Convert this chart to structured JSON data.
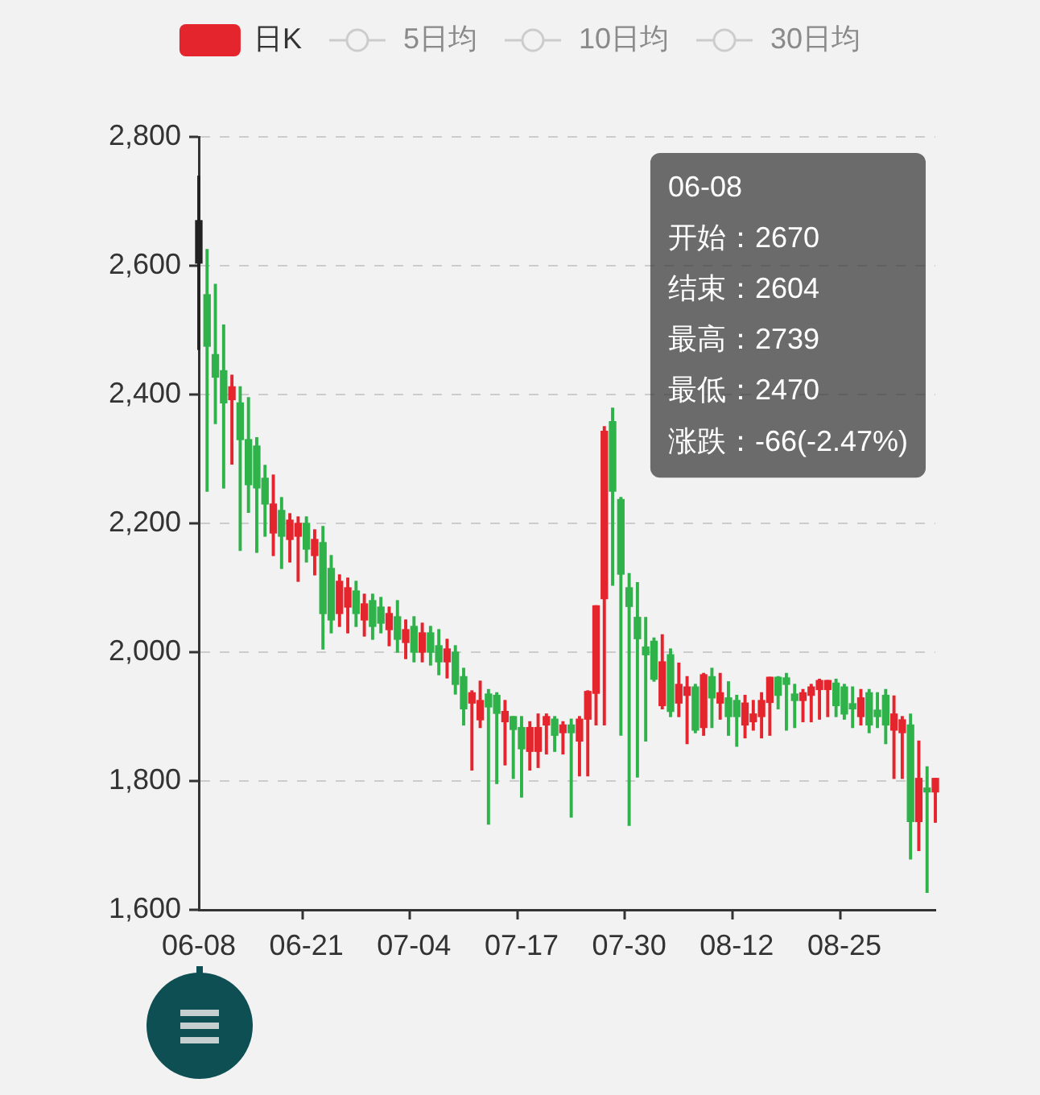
{
  "chart_data": {
    "type": "candlestick",
    "categories": [
      "06-08",
      null,
      null,
      null,
      null,
      null,
      null,
      null,
      null,
      null,
      null,
      null,
      null,
      "06-21",
      null,
      null,
      null,
      null,
      null,
      null,
      null,
      null,
      null,
      null,
      null,
      null,
      "07-04",
      null,
      null,
      null,
      null,
      null,
      null,
      null,
      null,
      null,
      null,
      null,
      null,
      "07-17",
      null,
      null,
      null,
      null,
      null,
      null,
      null,
      null,
      null,
      null,
      null,
      null,
      "07-30",
      null,
      null,
      null,
      null,
      null,
      null,
      null,
      null,
      null,
      null,
      null,
      null,
      "08-12",
      null,
      null,
      null,
      null,
      null,
      null,
      null,
      null,
      null,
      null,
      null,
      null,
      "08-25",
      null,
      null,
      null,
      null,
      null,
      null,
      null,
      null,
      null,
      null,
      null
    ],
    "ylim": [
      1600,
      2800
    ],
    "yticks": [
      {
        "value": 1600,
        "label": "1,600"
      },
      {
        "value": 1800,
        "label": "1,800"
      },
      {
        "value": 2000,
        "label": "2,000"
      },
      {
        "value": 2200,
        "label": "2,200"
      },
      {
        "value": 2400,
        "label": "2,400"
      },
      {
        "value": 2600,
        "label": "2,600"
      },
      {
        "value": 2800,
        "label": "2,800"
      }
    ],
    "grid": "y",
    "legend": "top",
    "series": [
      {
        "name": "日K",
        "color": "#e5252e",
        "ohlc": [
          [
            2670,
            2739,
            2470,
            2604
          ],
          [
            2555,
            2625,
            2250,
            2475
          ],
          [
            2462,
            2571,
            2355,
            2427
          ],
          [
            2437,
            2508,
            2255,
            2387
          ],
          [
            2392,
            2430,
            2292,
            2412
          ],
          [
            2387,
            2412,
            2158,
            2330
          ],
          [
            2330,
            2395,
            2217,
            2260
          ],
          [
            2320,
            2333,
            2155,
            2255
          ],
          [
            2270,
            2290,
            2180,
            2230
          ],
          [
            2185,
            2275,
            2150,
            2230
          ],
          [
            2220,
            2240,
            2130,
            2180
          ],
          [
            2175,
            2215,
            2140,
            2205
          ],
          [
            2180,
            2210,
            2110,
            2200
          ],
          [
            2200,
            2210,
            2140,
            2160
          ],
          [
            2150,
            2190,
            2120,
            2175
          ],
          [
            2170,
            2195,
            2005,
            2060
          ],
          [
            2130,
            2150,
            2030,
            2050
          ],
          [
            2060,
            2120,
            2040,
            2110
          ],
          [
            2070,
            2115,
            2030,
            2100
          ],
          [
            2095,
            2110,
            2040,
            2060
          ],
          [
            2050,
            2090,
            2025,
            2075
          ],
          [
            2080,
            2090,
            2020,
            2040
          ],
          [
            2070,
            2085,
            2030,
            2045
          ],
          [
            2035,
            2070,
            2010,
            2060
          ],
          [
            2055,
            2080,
            2000,
            2020
          ],
          [
            2015,
            2050,
            1990,
            2035
          ],
          [
            2040,
            2055,
            1985,
            2000
          ],
          [
            2000,
            2045,
            1985,
            2030
          ],
          [
            2030,
            2040,
            1980,
            2000
          ],
          [
            2010,
            2035,
            1965,
            1985
          ],
          [
            1985,
            2020,
            1960,
            2005
          ],
          [
            2000,
            2010,
            1935,
            1950
          ],
          [
            1962,
            1975,
            1887,
            1912
          ],
          [
            1921,
            1940,
            1817,
            1937
          ],
          [
            1895,
            1955,
            1883,
            1925
          ],
          [
            1935,
            1942,
            1733,
            1915
          ],
          [
            1933,
            1937,
            1796,
            1905
          ],
          [
            1892,
            1925,
            1825,
            1908
          ],
          [
            1900,
            1900,
            1804,
            1880
          ],
          [
            1883,
            1900,
            1775,
            1850
          ],
          [
            1846,
            1892,
            1817,
            1883
          ],
          [
            1846,
            1904,
            1821,
            1883
          ],
          [
            1887,
            1904,
            1842,
            1900
          ],
          [
            1896,
            1900,
            1846,
            1871
          ],
          [
            1875,
            1892,
            1842,
            1887
          ],
          [
            1887,
            1896,
            1744,
            1875
          ],
          [
            1862,
            1900,
            1808,
            1896
          ],
          [
            1896,
            1940,
            1808,
            1939
          ],
          [
            1936,
            2072,
            1887,
            2072
          ],
          [
            2083,
            2350,
            1887,
            2343
          ],
          [
            2358,
            2379,
            2104,
            2250
          ],
          [
            2237,
            2240,
            1871,
            2121
          ],
          [
            2100,
            2122,
            1731,
            2071
          ],
          [
            2054,
            2108,
            1806,
            2021
          ],
          [
            2008,
            2054,
            1862,
            1996
          ],
          [
            2017,
            2022,
            1955,
            1958
          ],
          [
            1917,
            2027,
            1912,
            1985
          ],
          [
            1996,
            2005,
            1900,
            1908
          ],
          [
            1921,
            1983,
            1900,
            1950
          ],
          [
            1933,
            1962,
            1858,
            1946
          ],
          [
            1946,
            1950,
            1875,
            1879
          ],
          [
            1883,
            1967,
            1871,
            1965
          ],
          [
            1962,
            1975,
            1883,
            1929
          ],
          [
            1921,
            1967,
            1896,
            1937
          ],
          [
            1929,
            1954,
            1871,
            1900
          ],
          [
            1925,
            1933,
            1854,
            1900
          ],
          [
            1887,
            1933,
            1867,
            1921
          ],
          [
            1892,
            1925,
            1879,
            1904
          ],
          [
            1900,
            1937,
            1867,
            1925
          ],
          [
            1922,
            1961,
            1871,
            1961
          ],
          [
            1961,
            1962,
            1912,
            1933
          ],
          [
            1960,
            1967,
            1879,
            1950
          ],
          [
            1935,
            1950,
            1883,
            1925
          ],
          [
            1925,
            1942,
            1892,
            1937
          ],
          [
            1933,
            1950,
            1892,
            1946
          ],
          [
            1942,
            1958,
            1896,
            1956
          ],
          [
            1942,
            1956,
            1900,
            1956
          ],
          [
            1952,
            1958,
            1900,
            1917
          ],
          [
            1946,
            1950,
            1896,
            1904
          ],
          [
            1920,
            1946,
            1883,
            1912
          ],
          [
            1900,
            1942,
            1887,
            1929
          ],
          [
            1937,
            1942,
            1875,
            1887
          ],
          [
            1910,
            1937,
            1883,
            1900
          ],
          [
            1933,
            1942,
            1858,
            1887
          ],
          [
            1879,
            1932,
            1804,
            1904
          ],
          [
            1875,
            1900,
            1804,
            1895
          ],
          [
            1887,
            1904,
            1679,
            1737
          ],
          [
            1737,
            1862,
            1692,
            1804
          ],
          [
            1789,
            1822,
            1627,
            1783
          ],
          [
            1783,
            1804,
            1736,
            1804
          ]
        ],
        "colors": [
          "#222222",
          "#2fb24a",
          "#2fb24a",
          "#2fb24a",
          "#e5252e",
          "#2fb24a",
          "#2fb24a",
          "#2fb24a",
          "#2fb24a",
          "#e5252e",
          "#2fb24a",
          "#e5252e",
          "#e5252e",
          "#2fb24a",
          "#e5252e",
          "#2fb24a",
          "#2fb24a",
          "#e5252e",
          "#e5252e",
          "#2fb24a",
          "#e5252e",
          "#2fb24a",
          "#2fb24a",
          "#e5252e",
          "#2fb24a",
          "#e5252e",
          "#2fb24a",
          "#e5252e",
          "#2fb24a",
          "#2fb24a",
          "#e5252e",
          "#2fb24a",
          "#2fb24a",
          "#e5252e",
          "#e5252e",
          "#2fb24a",
          "#2fb24a",
          "#e5252e",
          "#2fb24a",
          "#2fb24a",
          "#e5252e",
          "#e5252e",
          "#e5252e",
          "#2fb24a",
          "#e5252e",
          "#2fb24a",
          "#e5252e",
          "#e5252e",
          "#e5252e",
          "#e5252e",
          "#2fb24a",
          "#2fb24a",
          "#2fb24a",
          "#2fb24a",
          "#2fb24a",
          "#2fb24a",
          "#e5252e",
          "#2fb24a",
          "#e5252e",
          "#e5252e",
          "#2fb24a",
          "#e5252e",
          "#2fb24a",
          "#e5252e",
          "#2fb24a",
          "#2fb24a",
          "#e5252e",
          "#e5252e",
          "#e5252e",
          "#e5252e",
          "#2fb24a",
          "#2fb24a",
          "#2fb24a",
          "#e5252e",
          "#e5252e",
          "#e5252e",
          "#e5252e",
          "#2fb24a",
          "#2fb24a",
          "#2fb24a",
          "#e5252e",
          "#2fb24a",
          "#2fb24a",
          "#2fb24a",
          "#e5252e",
          "#e5252e",
          "#2fb24a",
          "#e5252e",
          "#2fb24a",
          "#e5252e"
        ]
      },
      {
        "name": "5日均",
        "type": "line",
        "color": "#cccccc",
        "values": [
          null,
          null,
          null,
          null,
          null,
          null,
          null,
          null,
          null,
          null,
          null,
          null,
          null,
          null,
          null,
          null,
          null,
          null,
          null,
          null,
          null,
          null,
          null,
          null,
          null,
          null,
          null,
          null,
          null,
          null,
          null,
          null,
          null,
          null,
          null,
          null,
          null,
          null,
          null,
          null,
          null,
          null,
          null,
          null,
          null,
          null,
          null,
          null,
          null,
          null,
          null,
          null,
          null,
          null,
          null,
          null,
          null,
          null,
          null,
          null,
          null,
          null,
          null,
          null,
          null,
          null,
          null,
          null,
          null,
          null,
          null,
          null,
          null,
          null,
          null,
          null,
          null,
          null,
          null,
          null,
          null,
          null,
          null,
          null,
          null,
          null,
          null,
          null,
          null,
          null
        ]
      },
      {
        "name": "10日均",
        "type": "line",
        "color": "#cccccc",
        "values": [
          null,
          null,
          null,
          null,
          null,
          null,
          null,
          null,
          null,
          null,
          null,
          null,
          null,
          null,
          null,
          null,
          null,
          null,
          null,
          null,
          null,
          null,
          null,
          null,
          null,
          null,
          null,
          null,
          null,
          null,
          null,
          null,
          null,
          null,
          null,
          null,
          null,
          null,
          null,
          null,
          null,
          null,
          null,
          null,
          null,
          null,
          null,
          null,
          null,
          null,
          null,
          null,
          null,
          null,
          null,
          null,
          null,
          null,
          null,
          null,
          null,
          null,
          null,
          null,
          null,
          null,
          null,
          null,
          null,
          null,
          null,
          null,
          null,
          null,
          null,
          null,
          null,
          null,
          null,
          null,
          null,
          null,
          null,
          null,
          null,
          null,
          null,
          null,
          null,
          null
        ]
      },
      {
        "name": "30日均",
        "type": "line",
        "color": "#cccccc",
        "values": [
          null,
          null,
          null,
          null,
          null,
          null,
          null,
          null,
          null,
          null,
          null,
          null,
          null,
          null,
          null,
          null,
          null,
          null,
          null,
          null,
          null,
          null,
          null,
          null,
          null,
          null,
          null,
          null,
          null,
          null,
          null,
          null,
          null,
          null,
          null,
          null,
          null,
          null,
          null,
          null,
          null,
          null,
          null,
          null,
          null,
          null,
          null,
          null,
          null,
          null,
          null,
          null,
          null,
          null,
          null,
          null,
          null,
          null,
          null,
          null,
          null,
          null,
          null,
          null,
          null,
          null,
          null,
          null,
          null,
          null,
          null,
          null,
          null,
          null,
          null,
          null,
          null,
          null,
          null,
          null,
          null,
          null,
          null,
          null,
          null,
          null,
          null,
          null,
          null,
          null
        ]
      }
    ],
    "annotations": [
      "06-08",
      "开始：2670",
      "结束：2604",
      "最高：2739",
      "最低：2470",
      "涨跌：-66(-2.47%)"
    ]
  }
}
